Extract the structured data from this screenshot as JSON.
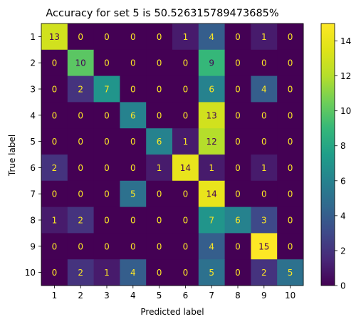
{
  "chart_data": {
    "type": "heatmap",
    "title": "Accuracy for set 5 is 50.526315789473685%",
    "xlabel": "Predicted label",
    "ylabel": "True label",
    "x_categories": [
      "1",
      "2",
      "3",
      "4",
      "5",
      "6",
      "7",
      "8",
      "9",
      "10"
    ],
    "y_categories": [
      "1",
      "2",
      "3",
      "4",
      "5",
      "6",
      "7",
      "8",
      "9",
      "10"
    ],
    "matrix": [
      [
        13,
        0,
        0,
        0,
        0,
        1,
        4,
        0,
        1,
        0
      ],
      [
        0,
        10,
        0,
        0,
        0,
        0,
        9,
        0,
        0,
        0
      ],
      [
        0,
        2,
        7,
        0,
        0,
        0,
        6,
        0,
        4,
        0
      ],
      [
        0,
        0,
        0,
        6,
        0,
        0,
        13,
        0,
        0,
        0
      ],
      [
        0,
        0,
        0,
        0,
        6,
        1,
        12,
        0,
        0,
        0
      ],
      [
        2,
        0,
        0,
        0,
        1,
        14,
        1,
        0,
        1,
        0
      ],
      [
        0,
        0,
        0,
        5,
        0,
        0,
        14,
        0,
        0,
        0
      ],
      [
        1,
        2,
        0,
        0,
        0,
        0,
        7,
        6,
        3,
        0
      ],
      [
        0,
        0,
        0,
        0,
        0,
        0,
        4,
        0,
        15,
        0
      ],
      [
        0,
        2,
        1,
        4,
        0,
        0,
        5,
        0,
        2,
        5
      ]
    ],
    "colormap": "viridis",
    "vmin": 0,
    "vmax": 15,
    "colorbar_ticks": [
      0,
      2,
      4,
      6,
      8,
      10,
      12,
      14
    ],
    "low_value_text_color": "#fde725",
    "high_value_text_color": "#440154"
  }
}
